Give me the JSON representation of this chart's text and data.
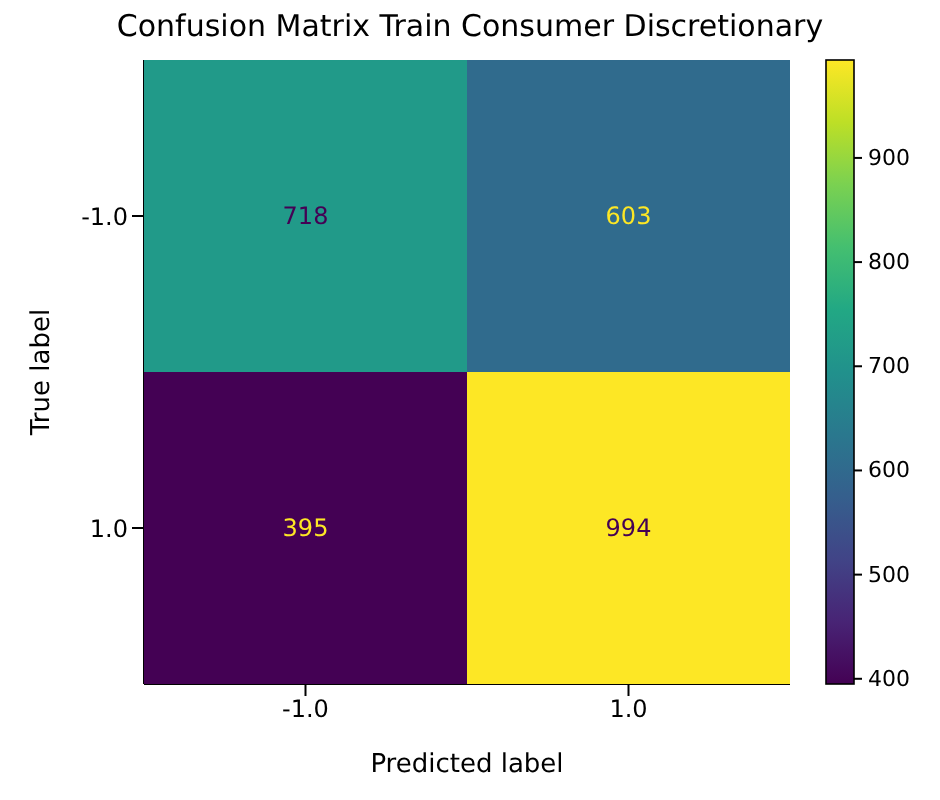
{
  "chart_data": {
    "type": "heatmap",
    "title": "Confusion Matrix Train Consumer Discretionary",
    "xlabel": "Predicted label",
    "ylabel": "True label",
    "categories": [
      "-1.0",
      "1.0"
    ],
    "y_categories": [
      "-1.0",
      "1.0"
    ],
    "cells": [
      [
        718,
        603
      ],
      [
        395,
        994
      ]
    ],
    "data_labels": true,
    "clim": [
      395,
      994
    ],
    "cticks": [
      400,
      500,
      600,
      700,
      800,
      900
    ]
  }
}
